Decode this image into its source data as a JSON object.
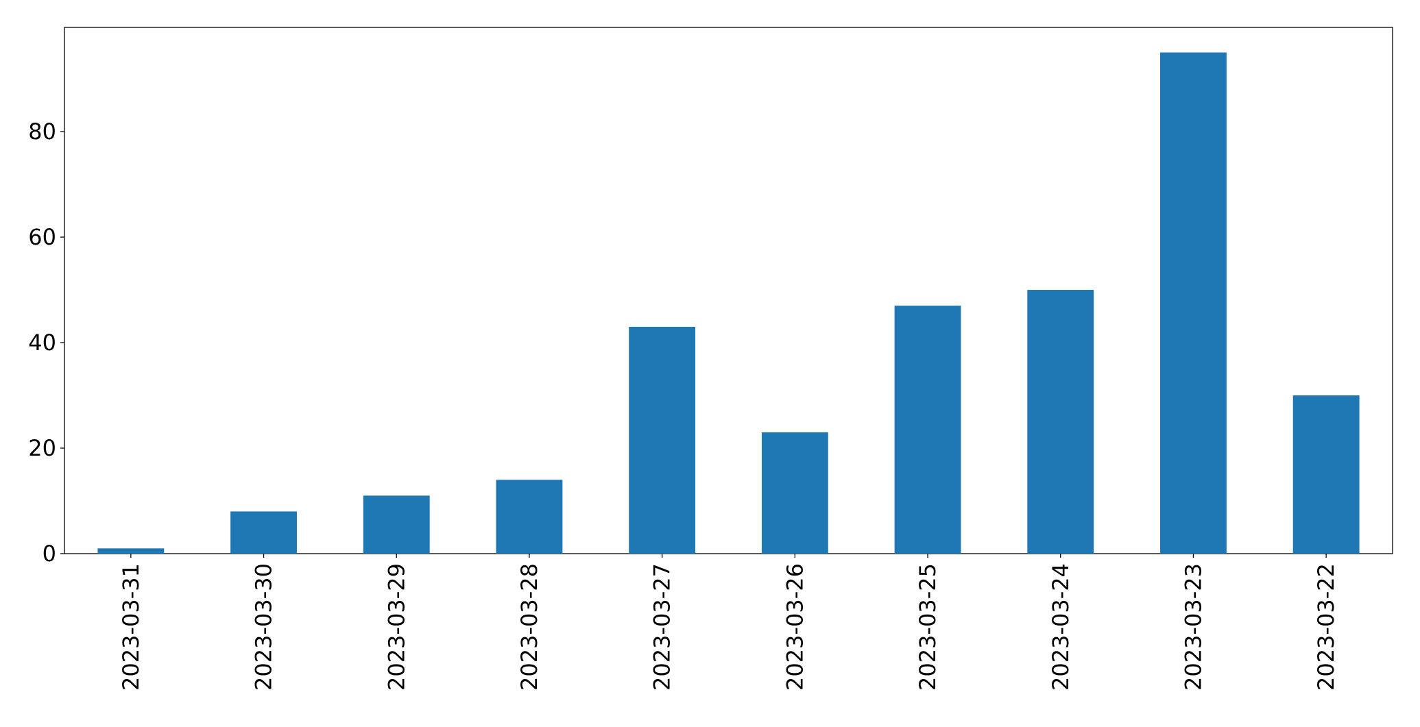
{
  "chart_data": {
    "type": "bar",
    "categories": [
      "2023-03-31",
      "2023-03-30",
      "2023-03-29",
      "2023-03-28",
      "2023-03-27",
      "2023-03-26",
      "2023-03-25",
      "2023-03-24",
      "2023-03-23",
      "2023-03-22"
    ],
    "values": [
      1,
      8,
      11,
      14,
      43,
      23,
      47,
      50,
      95,
      30
    ],
    "color": "#1f77b4",
    "ylim": [
      0,
      99.75
    ],
    "yticks": [
      0,
      20,
      40,
      60,
      80
    ],
    "grid": false
  }
}
